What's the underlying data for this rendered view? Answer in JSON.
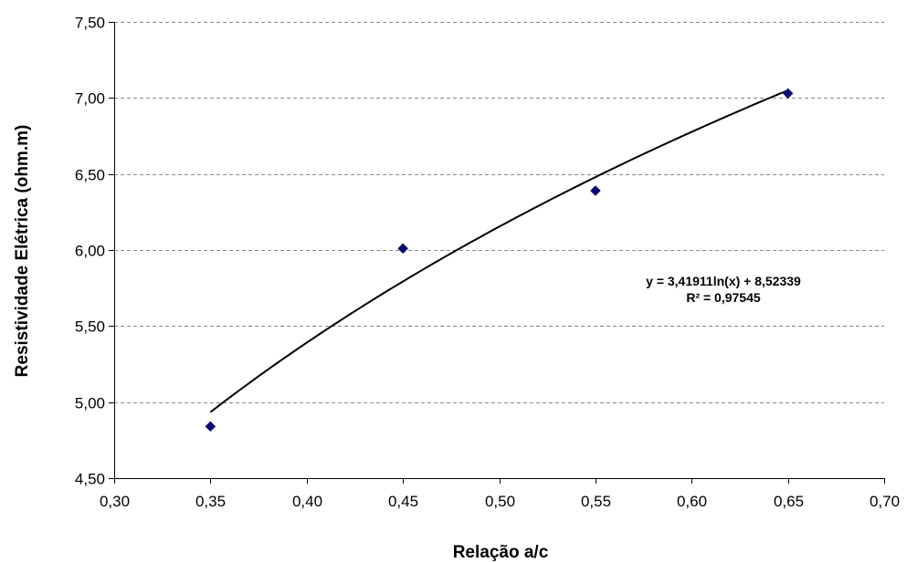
{
  "chart_data": {
    "type": "scatter",
    "xlabel": "Relação a/c",
    "ylabel": "Resistividade Elétrica (ohm.m)",
    "xlim": [
      0.3,
      0.7
    ],
    "ylim": [
      4.5,
      7.5
    ],
    "x_ticks": [
      0.3,
      0.35,
      0.4,
      0.45,
      0.5,
      0.55,
      0.6,
      0.65,
      0.7
    ],
    "y_ticks": [
      4.5,
      5.0,
      5.5,
      6.0,
      6.5,
      7.0,
      7.5
    ],
    "x_tick_labels": [
      "0,30",
      "0,35",
      "0,40",
      "0,45",
      "0,50",
      "0,55",
      "0,60",
      "0,65",
      "0,70"
    ],
    "y_tick_labels": [
      "4,50",
      "5,00",
      "5,50",
      "6,00",
      "6,50",
      "7,00",
      "7,50"
    ],
    "grid": "horizontal dashed",
    "series": [
      {
        "marker": "diamond",
        "color": "#0a0a6e",
        "points": [
          {
            "x": 0.35,
            "y": 4.84
          },
          {
            "x": 0.45,
            "y": 6.01
          },
          {
            "x": 0.55,
            "y": 6.39
          },
          {
            "x": 0.65,
            "y": 7.03
          }
        ]
      }
    ],
    "trendline": {
      "type": "logarithmic",
      "a": 3.41911,
      "b": 8.52339,
      "x_range": [
        0.35,
        0.65
      ],
      "color": "#000000",
      "equation_label": "y = 3,41911ln(x)  + 8,52339",
      "r2_label": "R² = 0,97545"
    }
  }
}
